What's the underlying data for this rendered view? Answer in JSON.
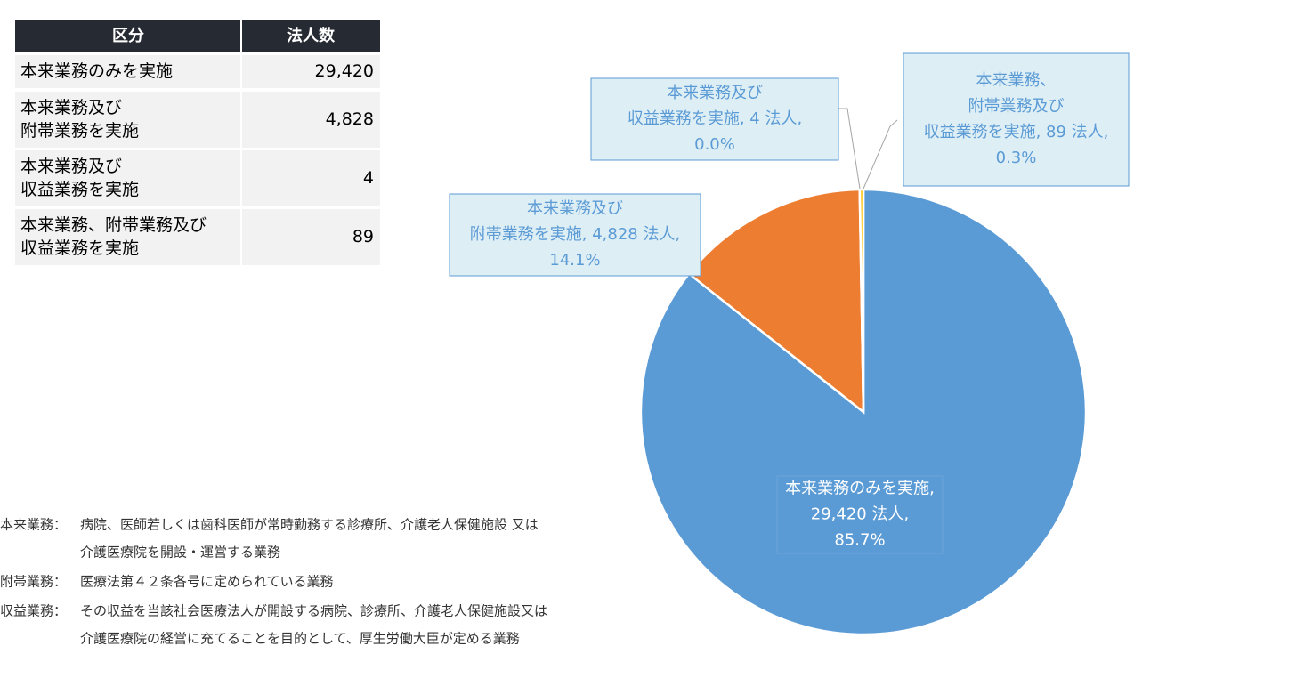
{
  "table": {
    "header": [
      "区分",
      "法人数"
    ],
    "rows": [
      [
        [
          "本来業務のみを実施"
        ],
        "29,420"
      ],
      [
        [
          "本来業務及び",
          "附帯業務を実施"
        ],
        "4,828"
      ],
      [
        [
          "本来業務及び",
          "収益業務を実施"
        ],
        "4"
      ],
      [
        [
          "本来業務、附帯業務及び",
          "収益業務を実施"
        ],
        "89"
      ]
    ]
  },
  "chart_data": {
    "type": "pie",
    "categories": [
      "本来業務のみを実施",
      "本来業務及び附帯業務を実施",
      "本来業務及び収益業務を実施",
      "本来業務、附帯業務及び収益業務を実施"
    ],
    "values": [
      29420,
      4828,
      4,
      89
    ],
    "colors": [
      "#5b9bd5",
      "#ed7d31",
      "#a5a5a5",
      "#ffc000"
    ],
    "data_labels": [
      [
        "本来業務のみを実施,",
        "29,420 法人,",
        "85.7%"
      ],
      [
        "本来業務及び",
        "附帯業務を実施, 4,828 法人,",
        "14.1%"
      ],
      [
        "本来業務及び",
        "収益業務を実施, 4 法人,",
        "0.0%"
      ],
      [
        "本来業務、",
        "附帯業務及び",
        "収益業務を実施, 89 法人,",
        "0.3%"
      ]
    ]
  },
  "notes": [
    {
      "term": "本来業務：",
      "lines": [
        "病院、医師若しくは歯科医師が常時勤務する診療所、介護老人保健施設 又は",
        "介護医療院を開設・運営する業務"
      ]
    },
    {
      "term": "附帯業務：",
      "lines": [
        "医療法第４２条各号に定められている業務"
      ]
    },
    {
      "term": "収益業務：",
      "lines": [
        "その収益を当該社会医療法人が開設する病院、診療所、介護老人保健施設又は",
        "介護医療院の経営に充てることを目的として、厚生労働大臣が定める業務"
      ]
    }
  ]
}
